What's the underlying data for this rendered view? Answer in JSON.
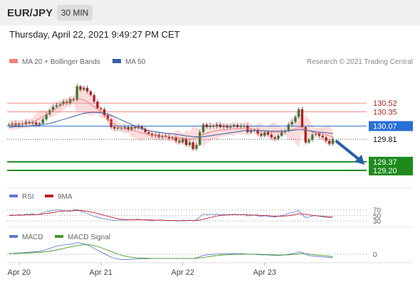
{
  "header": {
    "symbol": "EUR/JPY",
    "timeframe": "30 MIN"
  },
  "datetime": "Thursday, April 22, 2021 9:49:27 PM CET",
  "legend": {
    "ma20": "MA 20 + Bollinger Bands",
    "ma50": "MA 50",
    "credit": "Research © 2021 Trading Central"
  },
  "rsi_legend": {
    "rsi": "RSI",
    "ma": "9MA"
  },
  "macd_legend": {
    "macd": "MACD",
    "signal": "MACD Signal"
  },
  "colors": {
    "ma20": "#f08080",
    "ma50": "#3a5fa8",
    "bb_fill": "#fbd0d0",
    "bull": "#3a7a3a",
    "bear": "#b02020",
    "green_level": "#1e8a1e",
    "blue_level": "#2a6fd6",
    "arrow": "#2a5da8"
  },
  "chart_data": {
    "type": "candlestick",
    "price_range": [
      128.95,
      131.15
    ],
    "x_labels": [
      "Apr 20",
      "Apr 21",
      "Apr 22",
      "Apr 23"
    ],
    "levels": [
      {
        "value": 130.52,
        "label": "130.52",
        "style": "resistance"
      },
      {
        "value": 130.35,
        "label": "130.35",
        "style": "resistance"
      },
      {
        "value": 130.07,
        "label": "130.07",
        "style": "pivot"
      },
      {
        "value": 129.81,
        "label": "129.81",
        "style": "last"
      },
      {
        "value": 129.37,
        "label": "129.37",
        "style": "support"
      },
      {
        "value": 129.2,
        "label": "129.20",
        "style": "support"
      }
    ],
    "close": [
      130.1,
      130.12,
      130.08,
      130.12,
      130.1,
      130.15,
      130.12,
      130.14,
      130.1,
      130.12,
      130.2,
      130.3,
      130.38,
      130.45,
      130.48,
      130.5,
      130.55,
      130.52,
      130.6,
      130.58,
      130.85,
      130.78,
      130.82,
      130.75,
      130.68,
      130.55,
      130.42,
      130.4,
      130.28,
      130.2,
      130.05,
      130.02,
      130.04,
      130.02,
      130.05,
      130.0,
      130.05,
      130.03,
      130.06,
      130.02,
      129.95,
      129.92,
      129.88,
      129.9,
      129.85,
      129.88,
      129.86,
      129.83,
      129.85,
      129.78,
      129.75,
      129.82,
      129.7,
      129.75,
      129.62,
      129.7,
      129.95,
      130.1,
      130.05,
      130.08,
      130.06,
      130.1,
      130.05,
      130.08,
      130.04,
      130.06,
      130.09,
      130.05,
      130.07,
      130.08,
      129.95,
      129.98,
      130.0,
      129.92,
      129.88,
      129.95,
      129.9,
      129.85,
      129.82,
      129.88,
      129.95,
      129.98,
      130.1,
      130.15,
      130.25,
      130.4,
      130.05,
      129.75,
      129.8,
      129.9,
      129.92,
      129.88,
      129.85,
      129.78,
      129.72,
      129.81
    ],
    "ma20": [
      130.08,
      130.09,
      130.1,
      130.1,
      130.11,
      130.12,
      130.13,
      130.15,
      130.18,
      130.22,
      130.26,
      130.3,
      130.34,
      130.38,
      130.42,
      130.46,
      130.5,
      130.53,
      130.55,
      130.58,
      130.6,
      130.6,
      130.58,
      130.55,
      130.5,
      130.45,
      130.4,
      130.35,
      130.28,
      130.22,
      130.15,
      130.1,
      130.06,
      130.03,
      130.02,
      130.0,
      129.99,
      129.97,
      129.95,
      129.93,
      129.92,
      129.9,
      129.89,
      129.88,
      129.87,
      129.87,
      129.86,
      129.86,
      129.85,
      129.85,
      129.84,
      129.83,
      129.82,
      129.82,
      129.82,
      129.84,
      129.87,
      129.9,
      129.93,
      129.95,
      129.97,
      129.98,
      129.99,
      130.0,
      130.0,
      130.01,
      130.01,
      130.02,
      130.02,
      130.03,
      130.02,
      130.01,
      130.0,
      129.99,
      129.98,
      129.97,
      129.96,
      129.96,
      129.95,
      129.95,
      129.96,
      129.97,
      129.98,
      130.0,
      130.02,
      130.04,
      130.03,
      130.0,
      129.98,
      129.96,
      129.94,
      129.93,
      129.92,
      129.9,
      129.88,
      129.86
    ],
    "ma50": [
      130.05,
      130.05,
      130.06,
      130.06,
      130.06,
      130.07,
      130.07,
      130.08,
      130.08,
      130.09,
      130.1,
      130.11,
      130.12,
      130.14,
      130.16,
      130.18,
      130.2,
      130.22,
      130.24,
      130.26,
      130.28,
      130.3,
      130.32,
      130.33,
      130.34,
      130.34,
      130.34,
      130.33,
      130.32,
      130.3,
      130.28,
      130.25,
      130.22,
      130.19,
      130.16,
      130.13,
      130.1,
      130.07,
      130.04,
      130.02,
      130.0,
      129.98,
      129.97,
      129.96,
      129.95,
      129.94,
      129.93,
      129.92,
      129.92,
      129.91,
      129.9,
      129.89,
      129.88,
      129.87,
      129.86,
      129.86,
      129.86,
      129.86,
      129.87,
      129.88,
      129.89,
      129.9,
      129.91,
      129.92,
      129.93,
      129.94,
      129.95,
      129.96,
      129.97,
      129.98,
      129.98,
      129.98,
      129.98,
      129.98,
      129.98,
      129.98,
      129.97,
      129.97,
      129.97,
      129.97,
      129.97,
      129.97,
      129.98,
      129.98,
      129.99,
      130.0,
      130.0,
      129.99,
      129.98,
      129.97,
      129.96,
      129.95,
      129.95,
      129.94,
      129.93,
      129.92
    ],
    "rsi": [
      50,
      52,
      50,
      53,
      51,
      55,
      54,
      56,
      53,
      55,
      60,
      64,
      66,
      68,
      70,
      70,
      68,
      66,
      65,
      70,
      72,
      66,
      62,
      58,
      52,
      46,
      44,
      40,
      38,
      36,
      33,
      32,
      33,
      32,
      34,
      33,
      35,
      34,
      36,
      34,
      33,
      32,
      31,
      33,
      32,
      33,
      32,
      31,
      32,
      30,
      30,
      33,
      31,
      33,
      30,
      34,
      45,
      55,
      52,
      54,
      53,
      55,
      52,
      54,
      51,
      52,
      55,
      52,
      53,
      54,
      48,
      50,
      51,
      48,
      46,
      49,
      47,
      45,
      44,
      47,
      50,
      52,
      58,
      60,
      63,
      68,
      52,
      42,
      44,
      48,
      50,
      47,
      45,
      43,
      42,
      46
    ],
    "rsi_ma": [
      50,
      50,
      51,
      51,
      51,
      52,
      52,
      53,
      53,
      54,
      55,
      57,
      59,
      61,
      63,
      65,
      66,
      67,
      67,
      67,
      68,
      68,
      67,
      65,
      63,
      60,
      57,
      54,
      50,
      47,
      44,
      41,
      38,
      36,
      35,
      34,
      34,
      34,
      34,
      34,
      34,
      34,
      33,
      33,
      33,
      33,
      32,
      32,
      32,
      32,
      31,
      31,
      31,
      32,
      32,
      32,
      33,
      36,
      39,
      42,
      45,
      48,
      50,
      51,
      52,
      53,
      53,
      53,
      53,
      53,
      52,
      52,
      51,
      51,
      50,
      50,
      49,
      48,
      47,
      47,
      47,
      48,
      49,
      51,
      53,
      56,
      56,
      54,
      52,
      50,
      49,
      48,
      47,
      46,
      45,
      45
    ],
    "macd": [
      0.01,
      0.015,
      0.02,
      0.02,
      0.025,
      0.03,
      0.035,
      0.04,
      0.045,
      0.05,
      0.06,
      0.08,
      0.1,
      0.12,
      0.14,
      0.15,
      0.16,
      0.17,
      0.17,
      0.18,
      0.2,
      0.19,
      0.18,
      0.16,
      0.13,
      0.1,
      0.07,
      0.04,
      0.01,
      -0.02,
      -0.05,
      -0.07,
      -0.08,
      -0.09,
      -0.09,
      -0.09,
      -0.085,
      -0.08,
      -0.08,
      -0.075,
      -0.075,
      -0.075,
      -0.07,
      -0.07,
      -0.07,
      -0.07,
      -0.07,
      -0.07,
      -0.07,
      -0.07,
      -0.07,
      -0.07,
      -0.07,
      -0.07,
      -0.07,
      -0.06,
      -0.04,
      -0.02,
      -0.01,
      -0.005,
      0.0,
      0.005,
      0.005,
      0.01,
      0.01,
      0.01,
      0.01,
      0.01,
      0.01,
      0.01,
      0.0,
      0.0,
      0.0,
      -0.005,
      -0.01,
      -0.01,
      -0.012,
      -0.015,
      -0.02,
      -0.02,
      -0.015,
      -0.01,
      0.0,
      0.01,
      0.02,
      0.04,
      0.03,
      0.0,
      -0.02,
      -0.03,
      -0.035,
      -0.04,
      -0.045,
      -0.05,
      -0.055,
      -0.06
    ],
    "signal": [
      0.01,
      0.012,
      0.014,
      0.016,
      0.018,
      0.02,
      0.023,
      0.026,
      0.03,
      0.034,
      0.038,
      0.044,
      0.052,
      0.062,
      0.074,
      0.087,
      0.1,
      0.113,
      0.124,
      0.135,
      0.148,
      0.157,
      0.163,
      0.164,
      0.158,
      0.147,
      0.131,
      0.113,
      0.092,
      0.07,
      0.046,
      0.023,
      0.002,
      -0.016,
      -0.031,
      -0.043,
      -0.051,
      -0.057,
      -0.062,
      -0.065,
      -0.067,
      -0.069,
      -0.07,
      -0.07,
      -0.07,
      -0.07,
      -0.07,
      -0.07,
      -0.07,
      -0.07,
      -0.07,
      -0.07,
      -0.07,
      -0.07,
      -0.07,
      -0.068,
      -0.063,
      -0.055,
      -0.046,
      -0.037,
      -0.029,
      -0.022,
      -0.017,
      -0.012,
      -0.008,
      -0.005,
      -0.002,
      0.0,
      0.002,
      0.004,
      0.003,
      0.003,
      0.002,
      0.001,
      -0.002,
      -0.004,
      -0.006,
      -0.008,
      -0.01,
      -0.012,
      -0.013,
      -0.012,
      -0.01,
      -0.006,
      -0.001,
      0.007,
      0.012,
      0.01,
      0.004,
      -0.003,
      -0.01,
      -0.016,
      -0.022,
      -0.028,
      -0.034,
      -0.04
    ],
    "rsi_levels": [
      70,
      50,
      30
    ]
  }
}
